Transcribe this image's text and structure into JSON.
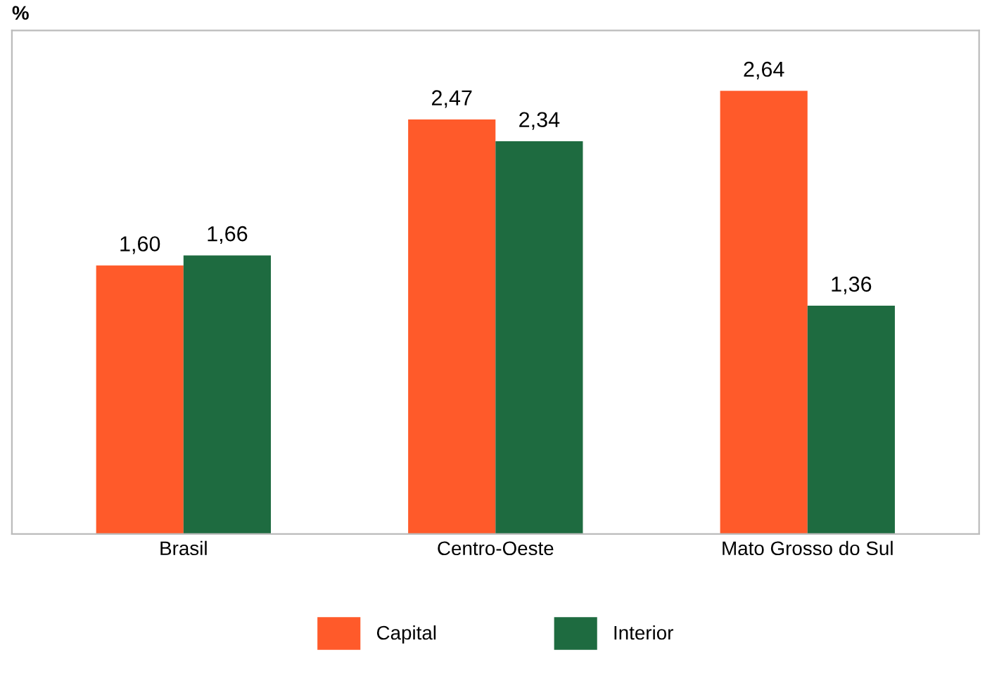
{
  "chart_data": {
    "type": "bar",
    "ylabel": "%",
    "categories": [
      "Brasil",
      "Centro-Oeste",
      "Mato Grosso do Sul"
    ],
    "series": [
      {
        "name": "Capital",
        "color": "#ff5a2a",
        "values": [
          1.6,
          2.47,
          2.64
        ],
        "value_labels": [
          "1,60",
          "2,47",
          "2,64"
        ]
      },
      {
        "name": "Interior",
        "color": "#1e6b40",
        "values": [
          1.66,
          2.34,
          1.36
        ],
        "value_labels": [
          "1,66",
          "2,34",
          "1,36"
        ]
      }
    ],
    "ylim": [
      0,
      3
    ],
    "tick_labels": "x",
    "grid": false,
    "legend": "bottom"
  }
}
